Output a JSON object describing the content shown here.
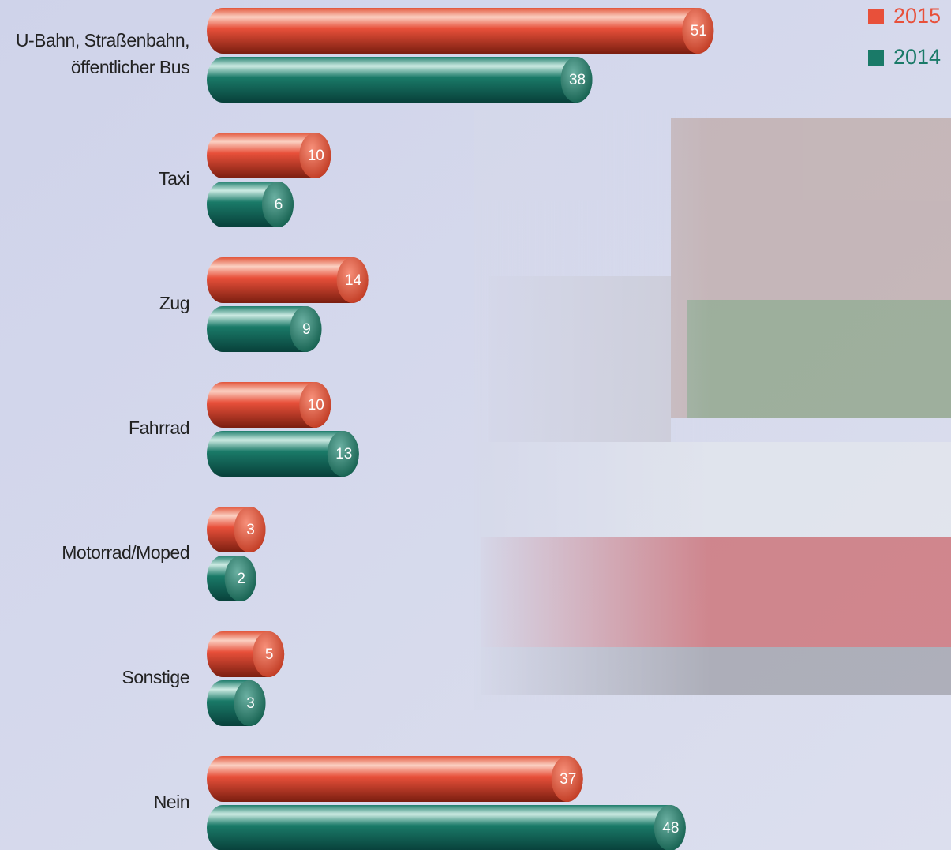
{
  "chart_data": {
    "type": "hbar-pairs",
    "categories": [
      "U-Bahn, Straßenbahn,\nöffentlicher Bus",
      "Taxi",
      "Zug",
      "Fahrrad",
      "Motorrad/Moped",
      "Sonstige",
      "Nein"
    ],
    "series": [
      {
        "name": "2015",
        "color": "#e8503a",
        "values": [
          51,
          10,
          14,
          10,
          3,
          5,
          37
        ]
      },
      {
        "name": "2014",
        "color": "#1a7a68",
        "values": [
          38,
          6,
          9,
          13,
          2,
          3,
          48
        ]
      }
    ]
  }
}
